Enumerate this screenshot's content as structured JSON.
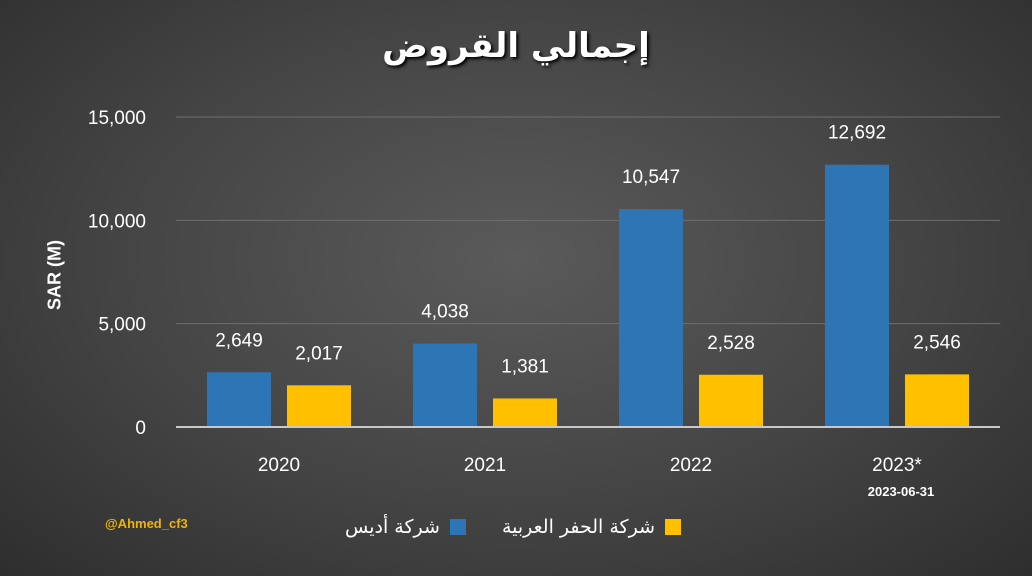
{
  "colors": {
    "series1": "#2E75B6",
    "series2": "#FFC000",
    "watermark": "#F0B400",
    "grid": "#6e6e6e",
    "axis": "#c8c8c8",
    "text": "#ffffff"
  },
  "watermark": "@Ahmed_cf3",
  "chart_data": {
    "type": "bar",
    "title": "إجمالي القروض",
    "ylabel": "SAR (M)",
    "xlabel": "",
    "categories": [
      "2020",
      "2021",
      "2022",
      "2023*"
    ],
    "category_note": "2023-06-31",
    "ylim": [
      0,
      15000
    ],
    "yticks": [
      0,
      5000,
      10000,
      15000
    ],
    "ytick_labels": [
      "0",
      "5,000",
      "10,000",
      "15,000"
    ],
    "grid": true,
    "legend_position": "bottom",
    "series": [
      {
        "name": "شركة أديس",
        "values": [
          2649,
          4038,
          10547,
          12692
        ],
        "labels": [
          "2,649",
          "4,038",
          "10,547",
          "12,692"
        ]
      },
      {
        "name": "شركة الحفر العربية",
        "values": [
          2017,
          1381,
          2528,
          2546
        ],
        "labels": [
          "2,017",
          "1,381",
          "2,528",
          "2,546"
        ]
      }
    ]
  }
}
